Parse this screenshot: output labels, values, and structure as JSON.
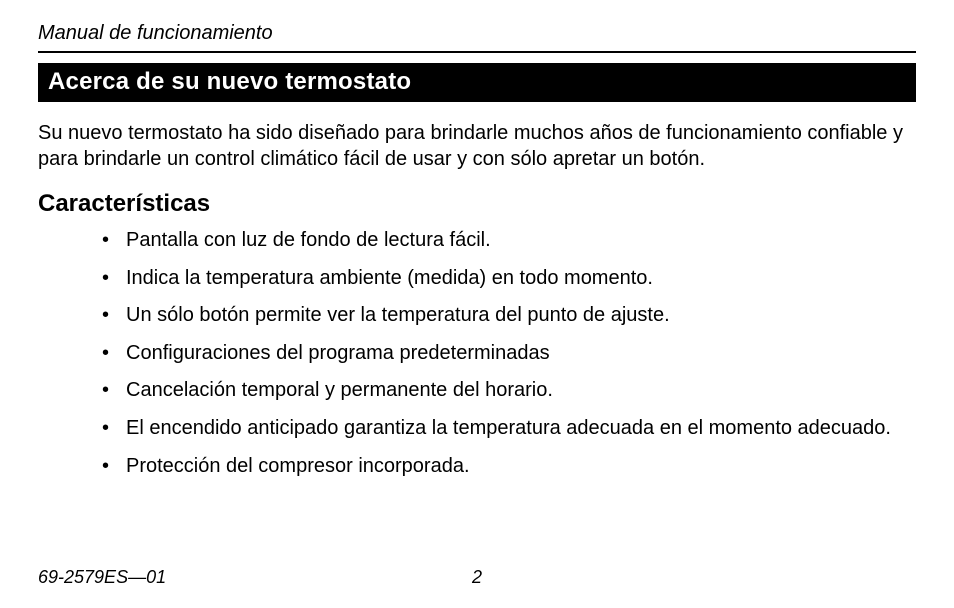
{
  "header": {
    "text": "Manual de funcionamiento"
  },
  "titleBar": {
    "text": "Acerca de su nuevo termostato"
  },
  "intro": {
    "text": "Su nuevo termostato ha sido diseñado para brindarle muchos años de funcionamiento confiable y para brindarle un control climático fácil de usar y con sólo apretar un botón."
  },
  "subhead": {
    "text": "Características"
  },
  "features": {
    "items": [
      "Pantalla con luz de fondo de lectura fácil.",
      "Indica la temperatura ambiente (medida) en todo momento.",
      "Un sólo botón permite ver la temperatura del punto de ajuste.",
      "Configuraciones del programa predeterminadas",
      "Cancelación temporal y permanente del horario.",
      "El encendido anticipado garantiza la temperatura adecuada en el momento adecuado.",
      "Protección del compresor incorporada."
    ]
  },
  "footer": {
    "docNumber": "69-2579ES—01",
    "pageNumber": "2"
  },
  "colors": {
    "titleBarBg": "#000000",
    "titleBarText": "#ffffff",
    "bodyText": "#000000",
    "pageBg": "#ffffff",
    "rule": "#000000"
  },
  "typography": {
    "header_fontsize": 20,
    "titleBar_fontsize": 24,
    "intro_fontsize": 20,
    "subhead_fontsize": 24,
    "list_fontsize": 20,
    "footer_fontsize": 18,
    "font_family": "Helvetica"
  }
}
